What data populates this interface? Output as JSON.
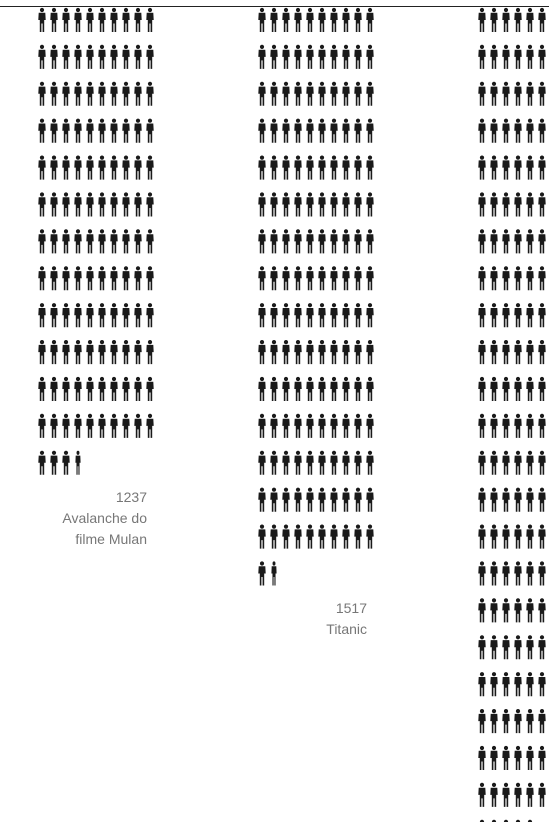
{
  "chart_data": {
    "type": "isotype",
    "unit_people": 10,
    "icons_per_row": 10,
    "series": [
      {
        "label": "Avalanche do filme Mulan",
        "label_lines": [
          "Avalanche do",
          "filme Mulan"
        ],
        "value": 1237,
        "value_text": "1237"
      },
      {
        "label": "Titanic",
        "label_lines": [
          "Titanic"
        ],
        "value": 1517,
        "value_text": "1517"
      },
      {
        "label": "",
        "label_lines": [],
        "value": null,
        "value_text": ""
      }
    ],
    "icon_color": "#1a1a1a",
    "text_color": "#777777"
  }
}
